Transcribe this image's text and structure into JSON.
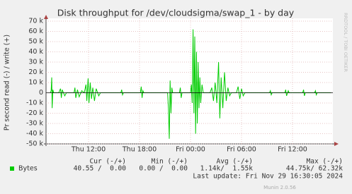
{
  "chart_data": {
    "type": "line",
    "title": "Disk throughput for /dev/cloudsigma/swap_1 - by day",
    "y_label": "Pr second read (-) / write (+)",
    "side_label": "RRDTOOL / TOBI OETIKER",
    "x": [
      7.5,
      7.6,
      7.67,
      7.72,
      7.8,
      7.9,
      8.5,
      8.7,
      8.8,
      8.9,
      9.2,
      9.4,
      10.3,
      10.4,
      10.5,
      10.7,
      10.9,
      11.2,
      11.5,
      11.7,
      11.8,
      11.95,
      12.05,
      12.2,
      12.35,
      12.5,
      12.7,
      12.9,
      13.2,
      13.4,
      15.8,
      15.9,
      16.0,
      16.1,
      18.1,
      18.2,
      18.3,
      18.4,
      18.5,
      21.3,
      21.4,
      21.5,
      21.6,
      21.7,
      21.8,
      21.9,
      22.7,
      22.8,
      22.9,
      23.0,
      24.0,
      24.1,
      24.2,
      24.3,
      24.4,
      24.5,
      24.6,
      24.7,
      24.8,
      24.9,
      25.0,
      25.1,
      25.2,
      25.35,
      25.5,
      26.3,
      26.5,
      26.7,
      26.9,
      27.1,
      27.3,
      27.45,
      27.6,
      27.8,
      28.0,
      28.2,
      28.4,
      28.6,
      28.8,
      29.4,
      29.6,
      29.8,
      30.0,
      30.2,
      30.4,
      33.3,
      33.4,
      33.5,
      33.6,
      35.1,
      35.2,
      35.3,
      35.5,
      35.6,
      37.2,
      37.3,
      37.4,
      37.5,
      38.6,
      38.7,
      38.8,
      38.9,
      40.5
    ],
    "series": [
      {
        "name": "Bytes",
        "color": "#00cc00",
        "values": [
          0,
          2000,
          15000,
          -15000,
          3000,
          0,
          0,
          4000,
          -5000,
          3000,
          -3000,
          0,
          0,
          5000,
          -5000,
          3000,
          -4000,
          2000,
          0,
          8000,
          -8000,
          14000,
          -10000,
          10000,
          -6000,
          5000,
          -8000,
          4000,
          -3000,
          0,
          0,
          3000,
          -2000,
          0,
          0,
          6000,
          -5000,
          2000,
          0,
          0,
          -15000,
          -45000,
          12000,
          -20000,
          5000,
          0,
          0,
          5000,
          -5000,
          0,
          0,
          8000,
          -10000,
          62000,
          -20000,
          55000,
          -40000,
          40000,
          -30000,
          30000,
          -15000,
          15000,
          -10000,
          8000,
          0,
          0,
          5000,
          -8000,
          10000,
          -10000,
          30000,
          -25000,
          15000,
          -15000,
          20000,
          -8000,
          5000,
          -3000,
          0,
          0,
          6000,
          -6000,
          4000,
          -3000,
          0,
          0,
          2000,
          -2000,
          0,
          0,
          3000,
          -3000,
          2000,
          0,
          0,
          3000,
          -3000,
          0,
          0,
          2000,
          -2000,
          0,
          0
        ]
      }
    ],
    "xlim": [
      7,
      40.75
    ],
    "xticks": [
      {
        "value": 12,
        "label": "Thu 12:00"
      },
      {
        "value": 18,
        "label": "Thu 18:00"
      },
      {
        "value": 24,
        "label": "Fri 00:00"
      },
      {
        "value": 30,
        "label": "Fri 06:00"
      },
      {
        "value": 36,
        "label": "Fri 12:00"
      }
    ],
    "ylim": [
      -50000,
      70000
    ],
    "yticks": [
      {
        "value": 70000,
        "label": "70 k"
      },
      {
        "value": 60000,
        "label": "60 k"
      },
      {
        "value": 50000,
        "label": "50 k"
      },
      {
        "value": 40000,
        "label": "40 k"
      },
      {
        "value": 30000,
        "label": "30 k"
      },
      {
        "value": 20000,
        "label": "20 k"
      },
      {
        "value": 10000,
        "label": "10 k"
      },
      0,
      {
        "value": -10000,
        "label": "-10 k"
      },
      {
        "value": -20000,
        "label": "-20 k"
      },
      {
        "value": -30000,
        "label": "-30 k"
      },
      {
        "value": -40000,
        "label": "-40 k"
      },
      {
        "value": -50000,
        "label": "-50 k"
      }
    ],
    "grid": true,
    "stats": [
      {
        "label": "Cur (-/+)",
        "value": "40.55 /  0.00"
      },
      {
        "label": "Min (-/+)",
        "value": "0.00 /  0.00"
      },
      {
        "label": "Avg (-/+)",
        "value": "1.14k/  1.55k"
      },
      {
        "label": "Max (-/+)",
        "value": "44.75k/ 62.32k"
      }
    ],
    "last_update": "Last update: Fri Nov 29 16:30:05 2024",
    "footer": "Munin 2.0.56"
  }
}
